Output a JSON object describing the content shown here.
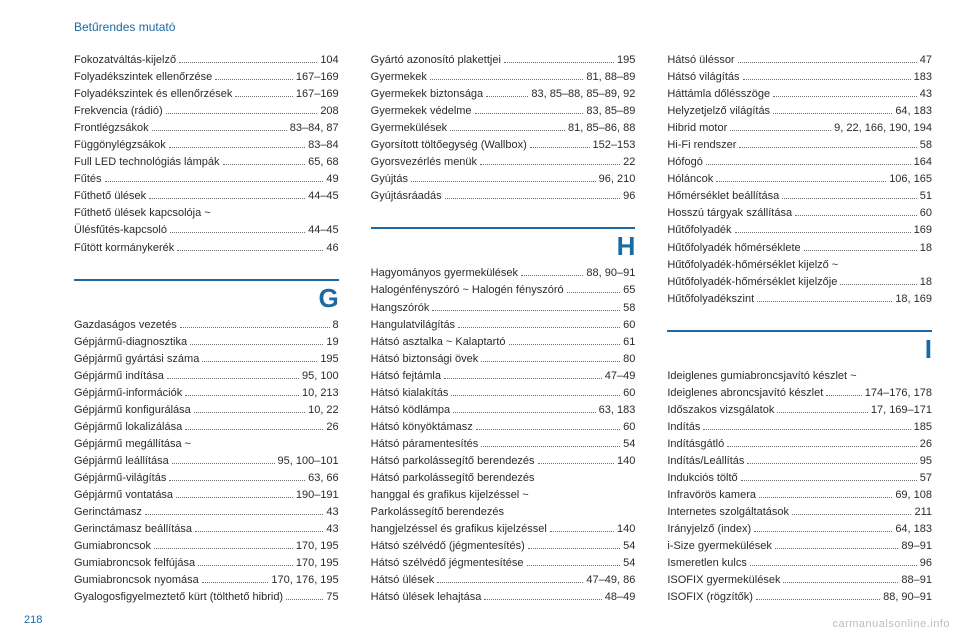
{
  "header": {
    "title": "Betűrendes mutató",
    "color": "#1b6aa3"
  },
  "footer": {
    "pageNumber": "218",
    "pageNumberColor": "#1b6aa3",
    "watermark": "carmanualsonline.info"
  },
  "style": {
    "ruleColor": "#1b6aa3",
    "textColor": "#2b2b2b",
    "accentColor": "#1b6aa3",
    "fontSize": 11,
    "headerFontSize": 12,
    "letterFontSize": 26,
    "background": "#ffffff"
  },
  "columns": [
    {
      "blocks": [
        {
          "type": "entries",
          "items": [
            {
              "label": "Fokozatváltás-kijelző",
              "pages": "104"
            },
            {
              "label": "Folyadékszintek ellenőrzése",
              "pages": "167–169"
            },
            {
              "label": "Folyadékszintek és ellenőrzések",
              "pages": "167–169"
            },
            {
              "label": "Frekvencia (rádió)",
              "pages": "208"
            },
            {
              "label": "Frontlégzsákok",
              "pages": "83–84, 87"
            },
            {
              "label": "Függönylégzsákok",
              "pages": "83–84"
            },
            {
              "label": "Full LED technológiás lámpák",
              "pages": "65, 68"
            },
            {
              "label": "Fűtés",
              "pages": "49"
            },
            {
              "label": "Fűthető ülések",
              "pages": "44–45"
            },
            {
              "label": "Fűthető ülések kapcsolója ~"
            },
            {
              "label": "Ülésfűtés-kapcsoló",
              "pages": "44–45"
            },
            {
              "label": "Fűtött kormánykerék",
              "pages": "46"
            }
          ]
        },
        {
          "type": "section",
          "letter": "G"
        },
        {
          "type": "entries",
          "items": [
            {
              "label": "Gazdaságos vezetés",
              "pages": "8"
            },
            {
              "label": "Gépjármű-diagnosztika",
              "pages": "19"
            },
            {
              "label": "Gépjármű gyártási száma",
              "pages": "195"
            },
            {
              "label": "Gépjármű indítása",
              "pages": "95, 100"
            },
            {
              "label": "Gépjármű-információk",
              "pages": "10, 213"
            },
            {
              "label": "Gépjármű konfigurálása",
              "pages": "10, 22"
            },
            {
              "label": "Gépjármű lokalizálása",
              "pages": "26"
            },
            {
              "label": "Gépjármű megállítása ~"
            },
            {
              "label": "Gépjármű leállítása",
              "pages": "95, 100–101"
            },
            {
              "label": "Gépjármű-világítás",
              "pages": "63, 66"
            },
            {
              "label": "Gépjármű vontatása",
              "pages": "190–191"
            },
            {
              "label": "Gerinctámasz",
              "pages": "43"
            },
            {
              "label": "Gerinctámasz beállítása",
              "pages": "43"
            },
            {
              "label": "Gumiabroncsok",
              "pages": "170, 195"
            },
            {
              "label": "Gumiabroncsok felfújása",
              "pages": "170, 195"
            },
            {
              "label": "Gumiabroncsok nyomása",
              "pages": "170, 176, 195"
            },
            {
              "label": "Gyalogosfigyelmeztető kürt (tölthető hibrid)",
              "pages": "75"
            }
          ]
        }
      ]
    },
    {
      "blocks": [
        {
          "type": "entries",
          "items": [
            {
              "label": "Gyártó azonosító plakettjei",
              "pages": "195"
            },
            {
              "label": "Gyermekek",
              "pages": "81, 88–89"
            },
            {
              "label": "Gyermekek biztonsága",
              "pages": "83, 85–88, 85–89, 92"
            },
            {
              "label": "Gyermekek védelme",
              "pages": "83, 85–89"
            },
            {
              "label": "Gyermekülések",
              "pages": "81, 85–86, 88"
            },
            {
              "label": "Gyorsított töltőegység (Wallbox)",
              "pages": "152–153"
            },
            {
              "label": "Gyorsvezérlés menük",
              "pages": "22"
            },
            {
              "label": "Gyújtás",
              "pages": "96, 210"
            },
            {
              "label": "Gyújtásráadás",
              "pages": "96"
            }
          ]
        },
        {
          "type": "section",
          "letter": "H"
        },
        {
          "type": "entries",
          "items": [
            {
              "label": "Hagyományos gyermekülések",
              "pages": "88, 90–91"
            },
            {
              "label": "Halogénfényszóró ~ Halogén fényszóró",
              "pages": "65"
            },
            {
              "label": "Hangszórók",
              "pages": "58"
            },
            {
              "label": "Hangulatvilágítás",
              "pages": "60"
            },
            {
              "label": "Hátsó asztalka ~ Kalaptartó",
              "pages": "61"
            },
            {
              "label": "Hátsó biztonsági övek",
              "pages": "80"
            },
            {
              "label": "Hátsó fejtámla",
              "pages": "47–49"
            },
            {
              "label": "Hátsó kialakítás",
              "pages": "60"
            },
            {
              "label": "Hátsó ködlámpa",
              "pages": "63, 183"
            },
            {
              "label": "Hátsó könyöktámasz",
              "pages": "60"
            },
            {
              "label": "Hátsó páramentesítés",
              "pages": "54"
            },
            {
              "label": "Hátsó parkolássegítő berendezés",
              "pages": "140"
            },
            {
              "label": "Hátsó parkolássegítő berendezés"
            },
            {
              "label": "hanggal és grafikus kijelzéssel ~"
            },
            {
              "label": "Parkolássegítő berendezés"
            },
            {
              "label": "hangjelzéssel és grafikus kijelzéssel",
              "pages": "140"
            },
            {
              "label": "Hátsó szélvédő (jégmentesítés)",
              "pages": "54"
            },
            {
              "label": "Hátsó szélvédő jégmentesítése",
              "pages": "54"
            },
            {
              "label": "Hátsó ülések",
              "pages": "47–49, 86"
            },
            {
              "label": "Hátsó ülések lehajtása",
              "pages": "48–49"
            }
          ]
        }
      ]
    },
    {
      "blocks": [
        {
          "type": "entries",
          "items": [
            {
              "label": "Hátsó üléssor",
              "pages": "47"
            },
            {
              "label": "Hátsó világítás",
              "pages": "183"
            },
            {
              "label": "Háttámla dőlésszöge",
              "pages": "43"
            },
            {
              "label": "Helyzetjelző világítás",
              "pages": "64, 183"
            },
            {
              "label": "Hibrid motor",
              "pages": "9, 22, 166, 190, 194"
            },
            {
              "label": "Hi-Fi rendszer",
              "pages": "58"
            },
            {
              "label": "Hófogó",
              "pages": "164"
            },
            {
              "label": "Hóláncok",
              "pages": "106, 165"
            },
            {
              "label": "Hőmérséklet beállítása",
              "pages": "51"
            },
            {
              "label": "Hosszú tárgyak szállítása",
              "pages": "60"
            },
            {
              "label": "Hűtőfolyadék",
              "pages": "169"
            },
            {
              "label": "Hűtőfolyadék hőmérséklete",
              "pages": "18"
            },
            {
              "label": "Hűtőfolyadék-hőmérséklet kijelző ~"
            },
            {
              "label": "Hűtőfolyadék-hőmérséklet kijelzője",
              "pages": "18"
            },
            {
              "label": "Hűtőfolyadékszint",
              "pages": "18, 169"
            }
          ]
        },
        {
          "type": "section",
          "letter": "I"
        },
        {
          "type": "entries",
          "items": [
            {
              "label": "Ideiglenes gumiabroncsjavító készlet ~"
            },
            {
              "label": "Ideiglenes abroncsjavító készlet",
              "pages": "174–176, 178"
            },
            {
              "label": "Időszakos vizsgálatok",
              "pages": "17, 169–171"
            },
            {
              "label": "Indítás",
              "pages": "185"
            },
            {
              "label": "Indításgátló",
              "pages": "26"
            },
            {
              "label": "Indítás/Leállítás",
              "pages": "95"
            },
            {
              "label": "Indukciós töltő",
              "pages": "57"
            },
            {
              "label": "Infravörös kamera",
              "pages": "69, 108"
            },
            {
              "label": "Internetes szolgáltatások",
              "pages": "211"
            },
            {
              "label": "Irányjelző (index)",
              "pages": "64, 183"
            },
            {
              "label": "i-Size gyermekülések",
              "pages": "89–91"
            },
            {
              "label": "Ismeretlen kulcs",
              "pages": "96"
            },
            {
              "label": "ISOFIX gyermekülések",
              "pages": "88–91"
            },
            {
              "label": "ISOFIX (rögzítők)",
              "pages": "88, 90–91"
            }
          ]
        }
      ]
    }
  ]
}
